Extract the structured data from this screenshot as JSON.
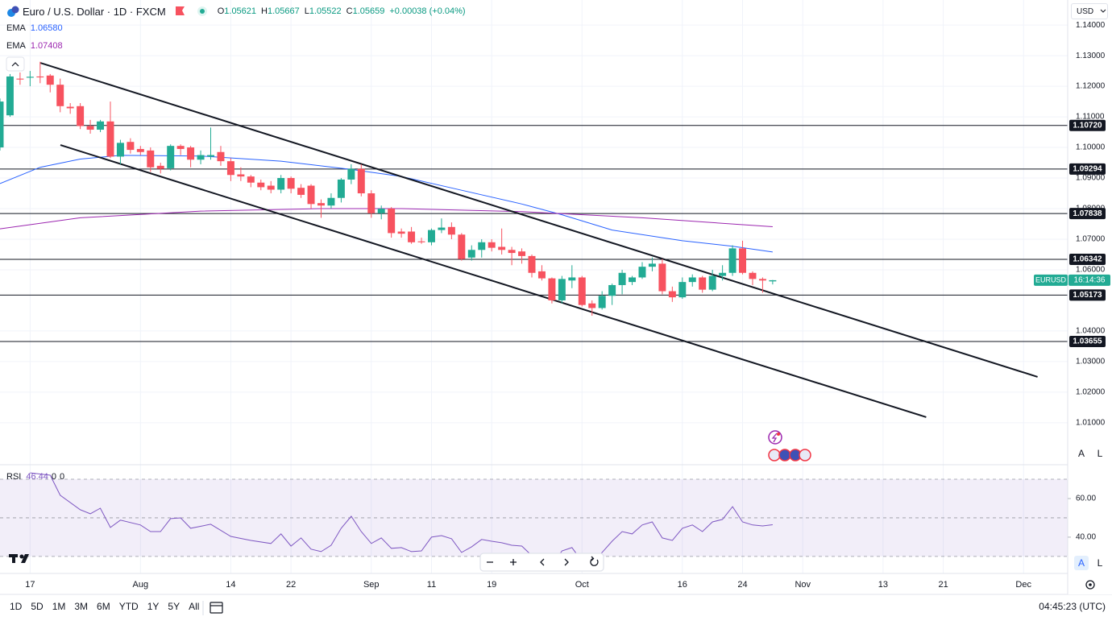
{
  "header": {
    "title": "Euro / U.S. Dollar · 1D · FXCM",
    "ohlc": [
      {
        "key": "O",
        "value": 1.05621
      },
      {
        "key": "H",
        "value": 1.05667
      },
      {
        "key": "L",
        "value": 1.05522
      },
      {
        "key": "C",
        "value": 1.05659
      }
    ],
    "change": "+0.00038 (+0.04%)"
  },
  "currency": "USD",
  "chart_data": {
    "type": "candlestick",
    "open": [
      1.1,
      1.1105,
      1.1225,
      1.1228,
      1.1232,
      1.1235,
      1.1205,
      1.1133,
      1.1135,
      1.107,
      1.1058,
      1.1085,
      1.097,
      1.1018,
      1.0995,
      1.099,
      1.094,
      1.0932,
      1.1005,
      1.1,
      1.096,
      1.097,
      1.0985,
      1.0955,
      1.0912,
      1.0905,
      1.0885,
      1.0875,
      1.0862,
      1.09,
      1.0868,
      1.0875,
      1.0818,
      1.081,
      1.0835,
      1.0895,
      1.093,
      1.085,
      1.0785,
      1.08,
      1.0725,
      1.0725,
      1.0693,
      1.069,
      1.073,
      1.074,
      1.0715,
      1.064,
      1.0665,
      1.069,
      1.0675,
      1.0665,
      1.066,
      1.0645,
      1.0595,
      1.0572,
      1.05,
      1.0565,
      1.0575,
      1.049,
      1.0475,
      1.0515,
      1.055,
      1.056,
      1.0575,
      1.061,
      1.062,
      1.053,
      1.051,
      1.056,
      1.0575,
      1.0535,
      1.058,
      1.059,
      1.067,
      1.059,
      1.057,
      1.05621
    ],
    "high": [
      1.116,
      1.124,
      1.1245,
      1.125,
      1.128,
      1.124,
      1.1225,
      1.1145,
      1.1145,
      1.109,
      1.109,
      1.115,
      1.1025,
      1.103,
      1.1005,
      1.1,
      1.095,
      1.101,
      1.101,
      1.1005,
      1.099,
      1.1065,
      1.1005,
      1.0965,
      1.0935,
      1.091,
      1.0895,
      1.089,
      1.091,
      1.0905,
      1.088,
      1.088,
      1.083,
      1.085,
      1.09,
      1.0945,
      1.0945,
      1.086,
      1.081,
      1.0805,
      1.0735,
      1.074,
      1.0705,
      1.0735,
      1.0768,
      1.0755,
      1.072,
      1.068,
      1.07,
      1.07,
      1.0735,
      1.0675,
      1.067,
      1.065,
      1.0615,
      1.0575,
      1.058,
      1.0615,
      1.058,
      1.05,
      1.053,
      1.0555,
      1.06,
      1.058,
      1.0625,
      1.064,
      1.0635,
      1.0545,
      1.0575,
      1.0585,
      1.058,
      1.06,
      1.0615,
      1.068,
      1.0695,
      1.0595,
      1.0575,
      1.05667
    ],
    "low": [
      1.099,
      1.11,
      1.1205,
      1.12,
      1.121,
      1.118,
      1.1115,
      1.111,
      1.106,
      1.1045,
      1.105,
      1.0965,
      1.0945,
      1.098,
      1.0975,
      1.092,
      1.0915,
      1.0925,
      1.0975,
      1.0935,
      1.0945,
      1.096,
      1.094,
      1.089,
      1.089,
      1.087,
      1.086,
      1.085,
      1.085,
      1.085,
      1.0835,
      1.08,
      1.077,
      1.08,
      1.082,
      1.088,
      1.084,
      1.077,
      1.0765,
      1.0705,
      1.0705,
      1.0685,
      1.0685,
      1.068,
      1.072,
      1.07,
      1.063,
      1.063,
      1.064,
      1.066,
      1.065,
      1.0615,
      1.062,
      1.0575,
      1.0565,
      1.049,
      1.049,
      1.054,
      1.048,
      1.045,
      1.047,
      1.0485,
      1.052,
      1.055,
      1.057,
      1.0595,
      1.052,
      1.0495,
      1.0505,
      1.0545,
      1.0525,
      1.053,
      1.0565,
      1.058,
      1.0585,
      1.055,
      1.0525,
      1.05522
    ],
    "close": [
      1.115,
      1.1232,
      1.1222,
      1.1231,
      1.1229,
      1.1205,
      1.1135,
      1.1128,
      1.107,
      1.1058,
      1.1085,
      1.097,
      1.1015,
      1.0992,
      1.0985,
      1.0935,
      1.093,
      1.1005,
      1.0995,
      1.096,
      1.0975,
      1.0975,
      1.0955,
      1.091,
      1.0905,
      1.0885,
      1.087,
      1.0862,
      1.09,
      1.0865,
      1.0845,
      1.0815,
      1.081,
      1.0835,
      1.0895,
      1.093,
      1.085,
      1.0785,
      1.08,
      1.072,
      1.0718,
      1.069,
      1.069,
      1.073,
      1.0738,
      1.0715,
      1.0635,
      1.0665,
      1.069,
      1.0672,
      1.0665,
      1.0655,
      1.0645,
      1.059,
      1.0572,
      1.05,
      1.057,
      1.0575,
      1.0485,
      1.0475,
      1.0515,
      1.055,
      1.059,
      1.0575,
      1.061,
      1.062,
      1.053,
      1.051,
      1.056,
      1.0575,
      1.0535,
      1.058,
      1.059,
      1.067,
      1.059,
      1.057,
      1.0565,
      1.05659
    ],
    "up_color": "#22ab94",
    "down_color": "#f7525f",
    "xlim": [
      0,
      106.4
    ],
    "xticks": [
      {
        "value": 3,
        "label": "17"
      },
      {
        "value": 14,
        "label": "Aug"
      },
      {
        "value": 23,
        "label": "14"
      },
      {
        "value": 29,
        "label": "22"
      },
      {
        "value": 37,
        "label": "Sep"
      },
      {
        "value": 43,
        "label": "11"
      },
      {
        "value": 49,
        "label": "19"
      },
      {
        "value": 58,
        "label": "Oct"
      },
      {
        "value": 68,
        "label": "16"
      },
      {
        "value": 74,
        "label": "24"
      },
      {
        "value": 80,
        "label": "Nov"
      },
      {
        "value": 88,
        "label": "13"
      },
      {
        "value": 94,
        "label": "21"
      },
      {
        "value": 102,
        "label": "Dec"
      }
    ],
    "ylim": [
      0.9968,
      1.1482
    ],
    "yticks": [
      {
        "value": 1.14,
        "label": "1.14000"
      },
      {
        "value": 1.13,
        "label": "1.13000"
      },
      {
        "value": 1.12,
        "label": "1.12000"
      },
      {
        "value": 1.11,
        "label": "1.11000"
      },
      {
        "value": 1.1,
        "label": "1.10000"
      },
      {
        "value": 1.09,
        "label": "1.09000"
      },
      {
        "value": 1.08,
        "label": "1.08000"
      },
      {
        "value": 1.07,
        "label": "1.07000"
      },
      {
        "value": 1.06,
        "label": "1.06000"
      },
      {
        "value": 1.04,
        "label": "1.04000"
      },
      {
        "value": 1.03,
        "label": "1.03000"
      },
      {
        "value": 1.02,
        "label": "1.02000"
      },
      {
        "value": 1.01,
        "label": "1.01000"
      }
    ],
    "grid": true,
    "series": [
      {
        "name": "EMA",
        "color": "#2962ff",
        "last_label": "1.06580",
        "x": [
          0,
          4,
          8,
          12,
          20,
          28,
          35,
          40,
          46,
          52,
          56,
          61,
          68,
          73,
          77
        ],
        "values": [
          1.0882,
          1.0935,
          1.0962,
          1.0974,
          1.0972,
          1.0955,
          1.0928,
          1.0905,
          1.086,
          1.0815,
          1.078,
          1.073,
          1.0695,
          1.0677,
          1.0658
        ]
      },
      {
        "name": "EMA",
        "color": "#9c27b0",
        "last_label": "1.07408",
        "x": [
          0,
          8,
          20,
          32,
          40,
          52,
          64,
          77
        ],
        "values": [
          1.0734,
          1.077,
          1.0792,
          1.08,
          1.08,
          1.079,
          1.077,
          1.07408
        ]
      }
    ],
    "levels": [
      {
        "value": 1.1072,
        "label": "1.10720"
      },
      {
        "value": 1.09294,
        "label": "1.09294"
      },
      {
        "value": 1.07838,
        "label": "1.07838"
      },
      {
        "value": 1.06342,
        "label": "1.06342"
      },
      {
        "value": 1.05173,
        "label": "1.05173"
      },
      {
        "value": 1.03655,
        "label": "1.03655"
      }
    ],
    "trend_lines": [
      {
        "x": [
          4.02,
          103.4
        ],
        "values": [
          1.12763,
          1.025
        ]
      },
      {
        "x": [
          6.02,
          92.3
        ],
        "values": [
          1.10079,
          1.01184
        ]
      }
    ],
    "symbol": "EURUSD",
    "countdown": "16:14:36",
    "rsi": {
      "name": "RSI",
      "color": "#7e57c2",
      "current": 46.44,
      "extra": [
        0,
        0
      ],
      "ylim": [
        21.2,
        77.1
      ],
      "yticks": [
        {
          "value": 60,
          "label": "60.00"
        },
        {
          "value": 40,
          "label": "40.00"
        }
      ],
      "levels": [
        70,
        50,
        30
      ],
      "x": [
        3,
        5,
        6,
        8,
        9,
        10,
        11,
        12,
        14,
        15,
        16,
        17,
        18,
        19,
        21,
        23,
        25,
        27,
        28,
        29,
        30,
        31,
        32,
        33,
        34,
        35,
        36,
        37,
        38,
        39,
        40,
        41,
        42,
        43,
        44,
        45,
        46,
        47,
        48,
        49,
        50,
        51,
        52,
        53,
        54,
        55,
        56,
        57,
        58,
        59,
        60,
        61,
        62,
        63,
        64,
        65,
        66,
        67,
        68,
        69,
        70,
        71,
        72,
        73,
        74,
        75,
        76,
        77
      ],
      "values": [
        73.3,
        72.1,
        61.7,
        54.2,
        52.1,
        55.0,
        45.0,
        48.8,
        46.3,
        42.9,
        42.9,
        49.6,
        50.0,
        44.6,
        46.7,
        40.4,
        38.3,
        36.7,
        41.7,
        35.4,
        39.6,
        33.8,
        32.5,
        35.8,
        44.6,
        50.8,
        42.9,
        36.7,
        39.6,
        34.2,
        34.6,
        32.5,
        32.9,
        40.0,
        40.8,
        39.2,
        32.1,
        35.0,
        38.8,
        37.9,
        37.1,
        35.8,
        35.4,
        30.4,
        29.2,
        25.0,
        32.9,
        34.6,
        27.5,
        26.3,
        32.1,
        37.9,
        42.9,
        41.7,
        46.3,
        47.9,
        39.6,
        38.3,
        44.6,
        46.3,
        42.9,
        47.9,
        49.2,
        55.8,
        47.9,
        46.3,
        45.8,
        46.44
      ]
    }
  },
  "scale_buttons": [
    "A",
    "L"
  ],
  "timeframes": [
    "1D",
    "5D",
    "1M",
    "3M",
    "6M",
    "YTD",
    "1Y",
    "5Y",
    "All"
  ],
  "clock": "04:45:23 (UTC)"
}
